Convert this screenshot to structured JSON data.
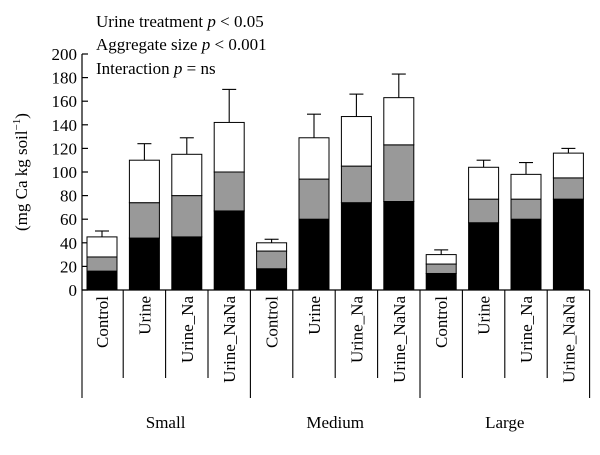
{
  "chart_data": {
    "type": "bar",
    "stacked": true,
    "ylabel": "(mg Ca kg soil",
    "ylabel_superscript": "−1",
    "ylabel_close": ")",
    "ylim": [
      0,
      200
    ],
    "yticks": [
      0,
      20,
      40,
      60,
      80,
      100,
      120,
      140,
      160,
      180,
      200
    ],
    "groups": [
      "Small",
      "Medium",
      "Large"
    ],
    "categories": [
      "Control",
      "Urine",
      "Urine_Na",
      "Urine_NaNa"
    ],
    "annotations": [
      {
        "prefix": "Urine treatment ",
        "italic": "p",
        "suffix": " < 0.05"
      },
      {
        "prefix": "Aggregate size ",
        "italic": "p",
        "suffix": " < 0.001"
      },
      {
        "prefix": "Interaction ",
        "italic": "p",
        "suffix": " = ns"
      }
    ],
    "segment_colors": [
      "#000000",
      "#999999",
      "#ffffff"
    ],
    "bars": [
      {
        "group": "Small",
        "category": "Control",
        "segments": [
          16,
          12,
          17
        ],
        "errors": [
          3,
          2,
          5
        ]
      },
      {
        "group": "Small",
        "category": "Urine",
        "segments": [
          44,
          30,
          36
        ],
        "errors": [
          3,
          7,
          14
        ]
      },
      {
        "group": "Small",
        "category": "Urine_Na",
        "segments": [
          45,
          35,
          35
        ],
        "errors": [
          13,
          5,
          14
        ]
      },
      {
        "group": "Small",
        "category": "Urine_NaNa",
        "segments": [
          67,
          33,
          42
        ],
        "errors": [
          0,
          5,
          28
        ]
      },
      {
        "group": "Medium",
        "category": "Control",
        "segments": [
          18,
          15,
          7
        ],
        "errors": [
          0,
          0,
          3
        ]
      },
      {
        "group": "Medium",
        "category": "Urine",
        "segments": [
          60,
          34,
          35
        ],
        "errors": [
          4,
          0,
          20
        ]
      },
      {
        "group": "Medium",
        "category": "Urine_Na",
        "segments": [
          74,
          31,
          42
        ],
        "errors": [
          11,
          2,
          19
        ]
      },
      {
        "group": "Medium",
        "category": "Urine_NaNa",
        "segments": [
          75,
          48,
          40
        ],
        "errors": [
          7,
          8,
          20
        ]
      },
      {
        "group": "Large",
        "category": "Control",
        "segments": [
          14,
          8,
          8
        ],
        "errors": [
          2,
          0,
          4
        ]
      },
      {
        "group": "Large",
        "category": "Urine",
        "segments": [
          57,
          20,
          27
        ],
        "errors": [
          2,
          6,
          6
        ]
      },
      {
        "group": "Large",
        "category": "Urine_Na",
        "segments": [
          60,
          17,
          21
        ],
        "errors": [
          3,
          0,
          10
        ]
      },
      {
        "group": "Large",
        "category": "Urine_NaNa",
        "segments": [
          77,
          18,
          21
        ],
        "errors": [
          0,
          2,
          4
        ]
      }
    ]
  }
}
